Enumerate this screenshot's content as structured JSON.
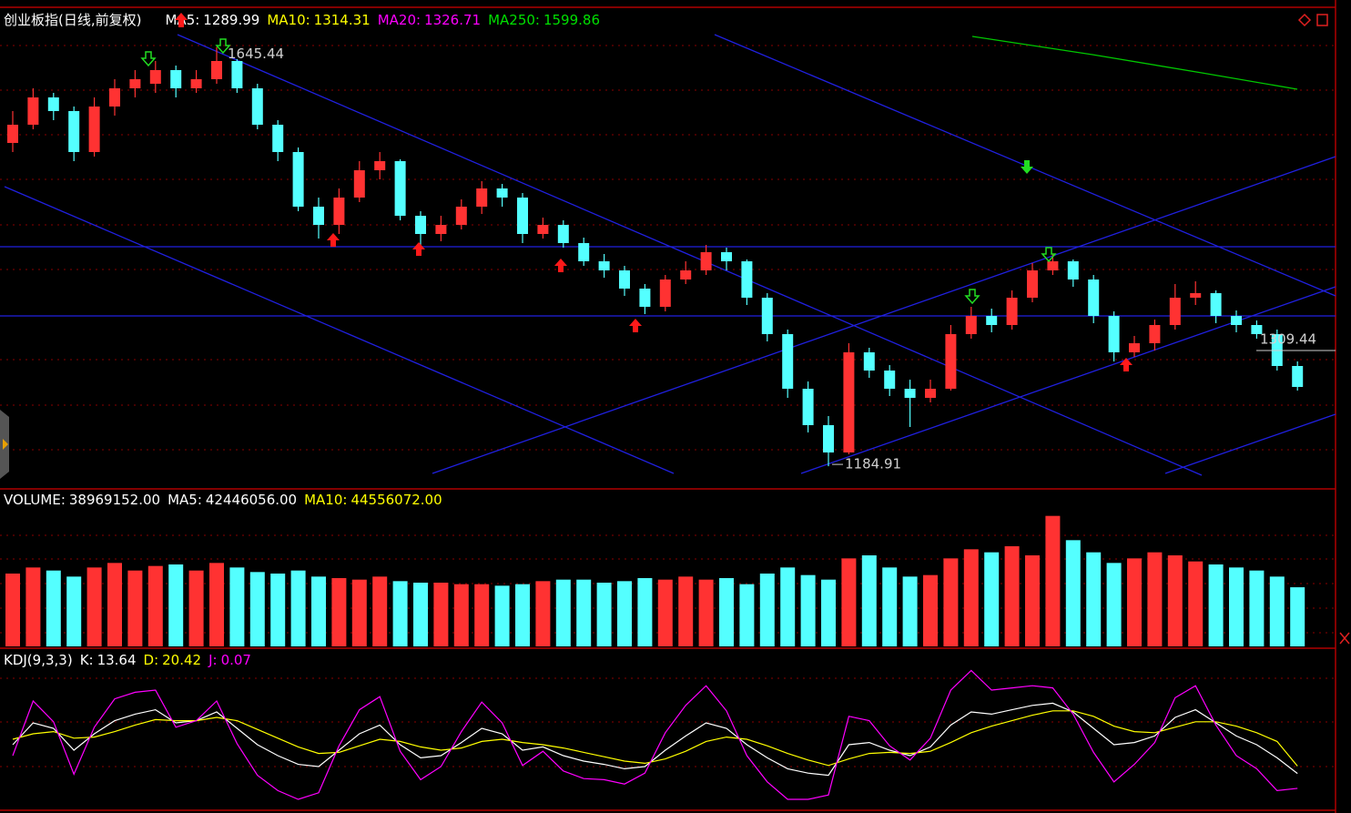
{
  "chart_data": [
    {
      "type": "candlestick",
      "title": "创业板指(日线,前复权)",
      "indicators": [
        {
          "name": "MA5:",
          "value": 1289.99,
          "color": "#ffffff"
        },
        {
          "name": "MA10:",
          "value": 1314.31,
          "color": "#ffff00"
        },
        {
          "name": "MA20:",
          "value": 1326.71,
          "color": "#ff00ff"
        },
        {
          "name": "MA250:",
          "value": 1599.86,
          "color": "#00e000"
        }
      ],
      "up_color": "#ff3232",
      "down_color": "#54ffff",
      "ylim": [
        1162,
        1687
      ],
      "cursor_price": 1309.44,
      "candles": [
        [
          1540,
          1575,
          1530,
          1560
        ],
        [
          1560,
          1600,
          1555,
          1590
        ],
        [
          1590,
          1595,
          1565,
          1575
        ],
        [
          1575,
          1580,
          1520,
          1530
        ],
        [
          1530,
          1590,
          1525,
          1580
        ],
        [
          1580,
          1610,
          1570,
          1600
        ],
        [
          1600,
          1620,
          1590,
          1610
        ],
        [
          1605,
          1630,
          1595,
          1620
        ],
        [
          1620,
          1625,
          1590,
          1600
        ],
        [
          1600,
          1620,
          1595,
          1610
        ],
        [
          1610,
          1645.44,
          1605,
          1630
        ],
        [
          1630,
          1632,
          1595,
          1600
        ],
        [
          1600,
          1605,
          1555,
          1560
        ],
        [
          1560,
          1565,
          1520,
          1530
        ],
        [
          1530,
          1535,
          1465,
          1470
        ],
        [
          1470,
          1480,
          1435,
          1450
        ],
        [
          1450,
          1490,
          1440,
          1480
        ],
        [
          1480,
          1520,
          1475,
          1510
        ],
        [
          1510,
          1530,
          1500,
          1520
        ],
        [
          1520,
          1522,
          1455,
          1460
        ],
        [
          1460,
          1465,
          1420,
          1440
        ],
        [
          1440,
          1460,
          1432,
          1450
        ],
        [
          1450,
          1478,
          1445,
          1470
        ],
        [
          1470,
          1498,
          1462,
          1490
        ],
        [
          1490,
          1495,
          1470,
          1480
        ],
        [
          1480,
          1485,
          1430,
          1440
        ],
        [
          1440,
          1458,
          1435,
          1450
        ],
        [
          1450,
          1455,
          1425,
          1430
        ],
        [
          1430,
          1436,
          1405,
          1410
        ],
        [
          1410,
          1418,
          1392,
          1400
        ],
        [
          1400,
          1405,
          1372,
          1380
        ],
        [
          1380,
          1385,
          1352,
          1360
        ],
        [
          1360,
          1395,
          1355,
          1390
        ],
        [
          1390,
          1410,
          1385,
          1400
        ],
        [
          1400,
          1428,
          1395,
          1420
        ],
        [
          1420,
          1425,
          1400,
          1410
        ],
        [
          1410,
          1412,
          1362,
          1370
        ],
        [
          1370,
          1375,
          1322,
          1330
        ],
        [
          1330,
          1335,
          1260,
          1270
        ],
        [
          1270,
          1278,
          1222,
          1230
        ],
        [
          1230,
          1240,
          1184.91,
          1200
        ],
        [
          1200,
          1320,
          1198,
          1310
        ],
        [
          1310,
          1315,
          1282,
          1290
        ],
        [
          1290,
          1296,
          1262,
          1270
        ],
        [
          1270,
          1280,
          1228,
          1260
        ],
        [
          1260,
          1280,
          1255,
          1270
        ],
        [
          1270,
          1340,
          1268,
          1330
        ],
        [
          1330,
          1360,
          1325,
          1350
        ],
        [
          1350,
          1358,
          1332,
          1340
        ],
        [
          1340,
          1378,
          1335,
          1370
        ],
        [
          1370,
          1408,
          1365,
          1400
        ],
        [
          1400,
          1418,
          1395,
          1410
        ],
        [
          1410,
          1412,
          1382,
          1390
        ],
        [
          1390,
          1395,
          1342,
          1350
        ],
        [
          1350,
          1355,
          1300,
          1310
        ],
        [
          1310,
          1328,
          1305,
          1320
        ],
        [
          1320,
          1346,
          1312,
          1340
        ],
        [
          1340,
          1385,
          1335,
          1370
        ],
        [
          1370,
          1388,
          1362,
          1375
        ],
        [
          1375,
          1378,
          1342,
          1350
        ],
        [
          1350,
          1356,
          1332,
          1340
        ],
        [
          1340,
          1345,
          1325,
          1330
        ],
        [
          1330,
          1335,
          1290,
          1295
        ],
        [
          1295,
          1300,
          1268,
          1272
        ]
      ]
    },
    {
      "type": "bar",
      "indicators": [
        {
          "name": "VOLUME:",
          "value": 38969152,
          "label": "38969152.00",
          "color": "#ffffff"
        },
        {
          "name": "MA5:",
          "value": 42446056,
          "label": "42446056.00",
          "color": "#ffffff"
        },
        {
          "name": "MA10:",
          "value": 44556072,
          "label": "44556072.00",
          "color": "#ffff00"
        }
      ],
      "ylim": [
        0,
        90000000
      ],
      "values": [
        48000000,
        52000000,
        50000000,
        46000000,
        52000000,
        55000000,
        50000000,
        53000000,
        54000000,
        50000000,
        55000000,
        52000000,
        49000000,
        48000000,
        50000000,
        46000000,
        45000000,
        44000000,
        46000000,
        43000000,
        42000000,
        42000000,
        41000000,
        41000000,
        40000000,
        41000000,
        43000000,
        44000000,
        44000000,
        42000000,
        43000000,
        45000000,
        44000000,
        46000000,
        44000000,
        45000000,
        41000000,
        48000000,
        52000000,
        47000000,
        44000000,
        58000000,
        60000000,
        52000000,
        46000000,
        47000000,
        58000000,
        64000000,
        62000000,
        66000000,
        60000000,
        86000000,
        70000000,
        62000000,
        55000000,
        58000000,
        62000000,
        60000000,
        56000000,
        54000000,
        52000000,
        50000000,
        46000000,
        38969152
      ]
    },
    {
      "type": "line",
      "title": "KDJ(9,3,3)",
      "ylim": [
        -20,
        115
      ],
      "series": [
        {
          "name": "K:",
          "color": "#ffffff",
          "values": [
            40,
            60,
            55,
            35,
            50,
            62,
            68,
            72,
            60,
            62,
            70,
            55,
            40,
            30,
            22,
            20,
            35,
            50,
            58,
            40,
            28,
            30,
            42,
            55,
            50,
            35,
            38,
            30,
            25,
            22,
            18,
            20,
            35,
            48,
            60,
            55,
            40,
            28,
            18,
            14,
            12,
            40,
            42,
            35,
            30,
            38,
            58,
            70,
            68,
            72,
            76,
            78,
            70,
            55,
            40,
            42,
            48,
            65,
            72,
            60,
            48,
            40,
            28,
            13.64
          ]
        },
        {
          "name": "D:",
          "color": "#ffff00",
          "values": [
            45,
            50,
            52,
            46,
            47,
            52,
            58,
            63,
            62,
            62,
            65,
            62,
            54,
            46,
            38,
            32,
            33,
            39,
            45,
            43,
            38,
            35,
            37,
            43,
            45,
            42,
            40,
            37,
            33,
            29,
            25,
            23,
            27,
            34,
            43,
            47,
            45,
            39,
            32,
            26,
            21,
            27,
            32,
            33,
            32,
            34,
            42,
            51,
            57,
            62,
            67,
            71,
            71,
            66,
            57,
            52,
            51,
            56,
            61,
            61,
            57,
            51,
            43,
            20.42
          ]
        },
        {
          "name": "J:",
          "color": "#ff00ff",
          "values": [
            30,
            80,
            61,
            13,
            56,
            82,
            88,
            90,
            56,
            62,
            80,
            41,
            12,
            -2,
            -10,
            -4,
            39,
            72,
            84,
            34,
            8,
            20,
            52,
            79,
            60,
            21,
            34,
            16,
            9,
            8,
            4,
            14,
            51,
            76,
            94,
            71,
            30,
            6,
            -10,
            -10,
            -6,
            66,
            62,
            39,
            26,
            46,
            90,
            108,
            90,
            92,
            94,
            92,
            68,
            33,
            6,
            22,
            42,
            83,
            94,
            58,
            30,
            18,
            -2,
            0.07
          ]
        }
      ]
    }
  ]
}
